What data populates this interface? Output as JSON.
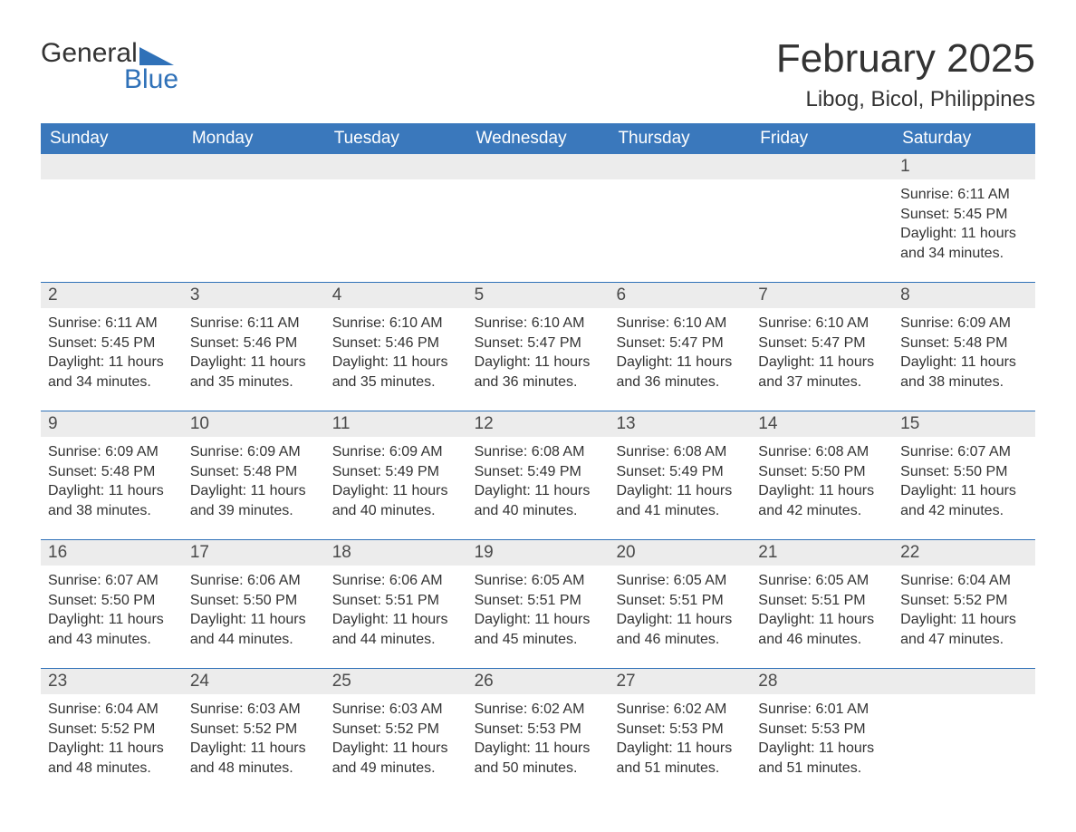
{
  "logo": {
    "top": "General",
    "bottom": "Blue"
  },
  "title": "February 2025",
  "location": "Libog, Bicol, Philippines",
  "colors": {
    "header_bg": "#3a78bc",
    "accent": "#2f71b8",
    "daynum_bg": "#ececec",
    "text": "#333333",
    "page_bg": "#ffffff"
  },
  "weekdays": [
    "Sunday",
    "Monday",
    "Tuesday",
    "Wednesday",
    "Thursday",
    "Friday",
    "Saturday"
  ],
  "weeks": [
    [
      null,
      null,
      null,
      null,
      null,
      null,
      {
        "n": "1",
        "sr": "Sunrise: 6:11 AM",
        "ss": "Sunset: 5:45 PM",
        "d1": "Daylight: 11 hours",
        "d2": "and 34 minutes."
      }
    ],
    [
      {
        "n": "2",
        "sr": "Sunrise: 6:11 AM",
        "ss": "Sunset: 5:45 PM",
        "d1": "Daylight: 11 hours",
        "d2": "and 34 minutes."
      },
      {
        "n": "3",
        "sr": "Sunrise: 6:11 AM",
        "ss": "Sunset: 5:46 PM",
        "d1": "Daylight: 11 hours",
        "d2": "and 35 minutes."
      },
      {
        "n": "4",
        "sr": "Sunrise: 6:10 AM",
        "ss": "Sunset: 5:46 PM",
        "d1": "Daylight: 11 hours",
        "d2": "and 35 minutes."
      },
      {
        "n": "5",
        "sr": "Sunrise: 6:10 AM",
        "ss": "Sunset: 5:47 PM",
        "d1": "Daylight: 11 hours",
        "d2": "and 36 minutes."
      },
      {
        "n": "6",
        "sr": "Sunrise: 6:10 AM",
        "ss": "Sunset: 5:47 PM",
        "d1": "Daylight: 11 hours",
        "d2": "and 36 minutes."
      },
      {
        "n": "7",
        "sr": "Sunrise: 6:10 AM",
        "ss": "Sunset: 5:47 PM",
        "d1": "Daylight: 11 hours",
        "d2": "and 37 minutes."
      },
      {
        "n": "8",
        "sr": "Sunrise: 6:09 AM",
        "ss": "Sunset: 5:48 PM",
        "d1": "Daylight: 11 hours",
        "d2": "and 38 minutes."
      }
    ],
    [
      {
        "n": "9",
        "sr": "Sunrise: 6:09 AM",
        "ss": "Sunset: 5:48 PM",
        "d1": "Daylight: 11 hours",
        "d2": "and 38 minutes."
      },
      {
        "n": "10",
        "sr": "Sunrise: 6:09 AM",
        "ss": "Sunset: 5:48 PM",
        "d1": "Daylight: 11 hours",
        "d2": "and 39 minutes."
      },
      {
        "n": "11",
        "sr": "Sunrise: 6:09 AM",
        "ss": "Sunset: 5:49 PM",
        "d1": "Daylight: 11 hours",
        "d2": "and 40 minutes."
      },
      {
        "n": "12",
        "sr": "Sunrise: 6:08 AM",
        "ss": "Sunset: 5:49 PM",
        "d1": "Daylight: 11 hours",
        "d2": "and 40 minutes."
      },
      {
        "n": "13",
        "sr": "Sunrise: 6:08 AM",
        "ss": "Sunset: 5:49 PM",
        "d1": "Daylight: 11 hours",
        "d2": "and 41 minutes."
      },
      {
        "n": "14",
        "sr": "Sunrise: 6:08 AM",
        "ss": "Sunset: 5:50 PM",
        "d1": "Daylight: 11 hours",
        "d2": "and 42 minutes."
      },
      {
        "n": "15",
        "sr": "Sunrise: 6:07 AM",
        "ss": "Sunset: 5:50 PM",
        "d1": "Daylight: 11 hours",
        "d2": "and 42 minutes."
      }
    ],
    [
      {
        "n": "16",
        "sr": "Sunrise: 6:07 AM",
        "ss": "Sunset: 5:50 PM",
        "d1": "Daylight: 11 hours",
        "d2": "and 43 minutes."
      },
      {
        "n": "17",
        "sr": "Sunrise: 6:06 AM",
        "ss": "Sunset: 5:50 PM",
        "d1": "Daylight: 11 hours",
        "d2": "and 44 minutes."
      },
      {
        "n": "18",
        "sr": "Sunrise: 6:06 AM",
        "ss": "Sunset: 5:51 PM",
        "d1": "Daylight: 11 hours",
        "d2": "and 44 minutes."
      },
      {
        "n": "19",
        "sr": "Sunrise: 6:05 AM",
        "ss": "Sunset: 5:51 PM",
        "d1": "Daylight: 11 hours",
        "d2": "and 45 minutes."
      },
      {
        "n": "20",
        "sr": "Sunrise: 6:05 AM",
        "ss": "Sunset: 5:51 PM",
        "d1": "Daylight: 11 hours",
        "d2": "and 46 minutes."
      },
      {
        "n": "21",
        "sr": "Sunrise: 6:05 AM",
        "ss": "Sunset: 5:51 PM",
        "d1": "Daylight: 11 hours",
        "d2": "and 46 minutes."
      },
      {
        "n": "22",
        "sr": "Sunrise: 6:04 AM",
        "ss": "Sunset: 5:52 PM",
        "d1": "Daylight: 11 hours",
        "d2": "and 47 minutes."
      }
    ],
    [
      {
        "n": "23",
        "sr": "Sunrise: 6:04 AM",
        "ss": "Sunset: 5:52 PM",
        "d1": "Daylight: 11 hours",
        "d2": "and 48 minutes."
      },
      {
        "n": "24",
        "sr": "Sunrise: 6:03 AM",
        "ss": "Sunset: 5:52 PM",
        "d1": "Daylight: 11 hours",
        "d2": "and 48 minutes."
      },
      {
        "n": "25",
        "sr": "Sunrise: 6:03 AM",
        "ss": "Sunset: 5:52 PM",
        "d1": "Daylight: 11 hours",
        "d2": "and 49 minutes."
      },
      {
        "n": "26",
        "sr": "Sunrise: 6:02 AM",
        "ss": "Sunset: 5:53 PM",
        "d1": "Daylight: 11 hours",
        "d2": "and 50 minutes."
      },
      {
        "n": "27",
        "sr": "Sunrise: 6:02 AM",
        "ss": "Sunset: 5:53 PM",
        "d1": "Daylight: 11 hours",
        "d2": "and 51 minutes."
      },
      {
        "n": "28",
        "sr": "Sunrise: 6:01 AM",
        "ss": "Sunset: 5:53 PM",
        "d1": "Daylight: 11 hours",
        "d2": "and 51 minutes."
      },
      null
    ]
  ]
}
